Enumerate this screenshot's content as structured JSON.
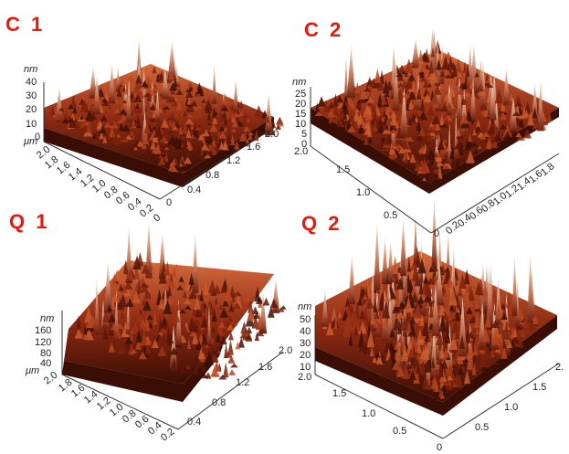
{
  "panels": [
    {
      "id": "c1",
      "label": "C 1",
      "z_unit": "nm",
      "z_ticks": [
        "40",
        "30",
        "20",
        "10",
        "0"
      ],
      "x_unit": "μm",
      "left_axis_ticks": [
        "2.0",
        "1.8",
        "1.6",
        "1.4",
        "1.2",
        "1.0",
        "0.8",
        "0.6",
        "0.4",
        "0.2",
        "0"
      ],
      "right_axis_ticks": [
        "0.4",
        "0.8",
        "1.2",
        "1.6",
        "2.0"
      ],
      "right_axis_zero": "0"
    },
    {
      "id": "c2",
      "label": "C 2",
      "z_unit": "nm",
      "z_ticks": [
        "25",
        "20",
        "15",
        "10",
        "5",
        "0"
      ],
      "left_axis_ticks": [
        "2.0",
        "1.5",
        "1.0",
        "0.5",
        "0"
      ],
      "right_axis_ticks": [
        "0.2",
        "0.4",
        "0.6",
        "0.8",
        "1.0",
        "1.2",
        "1.4",
        "1.6",
        "1.8"
      ]
    },
    {
      "id": "q1",
      "label": "Q 1",
      "z_unit": "nm",
      "z_ticks": [
        "160",
        "120",
        "80",
        "40"
      ],
      "x_unit": "μm",
      "left_axis_ticks": [
        "2.0",
        "1.8",
        "1.6",
        "1.4",
        "1.2",
        "1.0",
        "0.8",
        "0.6",
        "0.4",
        "0.2"
      ],
      "right_axis_ticks": [
        "0.4",
        "0.8",
        "1.2",
        "1.6",
        "2.0"
      ]
    },
    {
      "id": "q2",
      "label": "Q 2",
      "z_unit": "nm",
      "z_ticks": [
        "50",
        "40",
        "30",
        "20",
        "10"
      ],
      "left_axis_ticks": [
        "2.0",
        "1.5",
        "1.0",
        "0.5",
        "0"
      ],
      "right_axis_ticks": [
        "0.5",
        "1.0",
        "1.5",
        "2."
      ]
    }
  ],
  "colors": {
    "label": "#e8180f",
    "surface_dark": "#3a0e05",
    "surface_mid": "#a8361a",
    "surface_light": "#f0d8c0"
  }
}
